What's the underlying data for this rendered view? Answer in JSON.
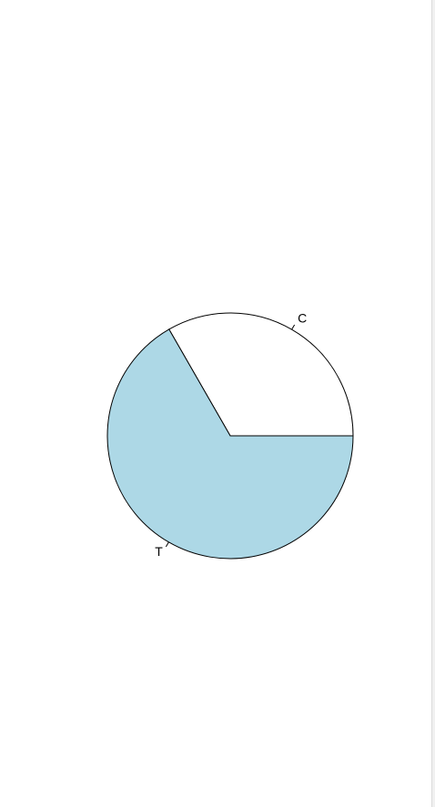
{
  "chart_data": {
    "type": "pie",
    "title": "",
    "categories": [
      "C",
      "T"
    ],
    "values": [
      0.333,
      0.667
    ],
    "colors": [
      "#ffffff",
      "#add8e6"
    ],
    "start_angle_deg": 0,
    "direction": "counterclockwise",
    "outline_color": "#000000",
    "legend": "none"
  }
}
